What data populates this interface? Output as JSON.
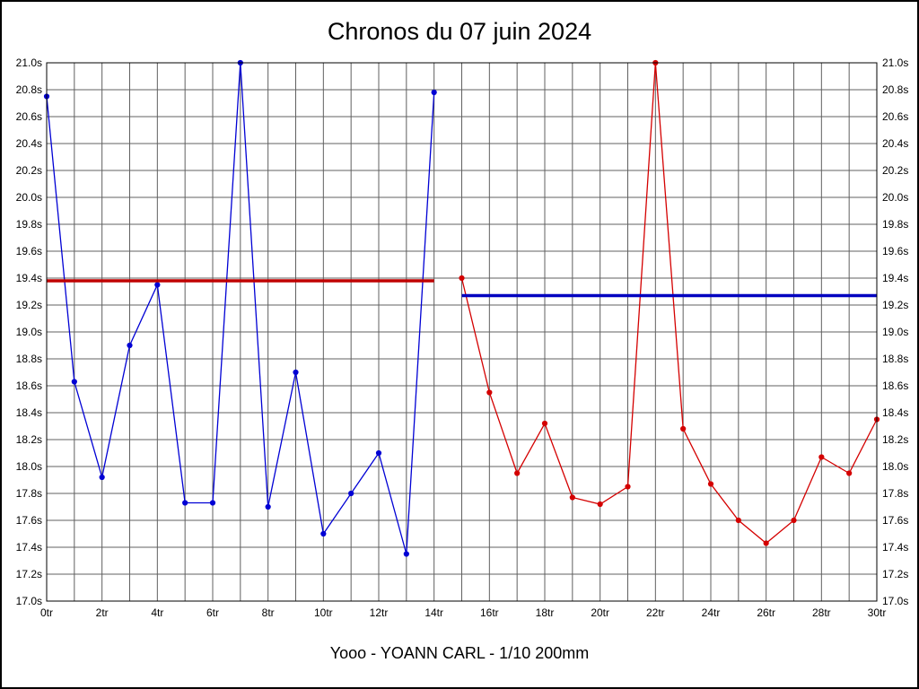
{
  "chart_data": {
    "type": "line",
    "title": "Chronos du 07 juin 2024",
    "footer": "Yooo - YOANN CARL - 1/10 200mm",
    "xlim": [
      0,
      30
    ],
    "ylim": [
      17.0,
      21.0
    ],
    "x_tick_step": 2,
    "y_tick_step": 0.2,
    "x_grid_step": 1,
    "xlabel_suffix": "tr",
    "ylabel_suffix": "s",
    "grid": true,
    "grid_color": "#606060",
    "axis_color": "#000000",
    "text_color": "#000000",
    "legend_position": "none",
    "series": [
      {
        "name": "blue-series",
        "color": "#0000d4",
        "x": [
          0,
          1,
          2,
          3,
          4,
          5,
          6,
          7,
          8,
          9,
          10,
          11,
          12,
          13,
          14
        ],
        "values": [
          20.75,
          18.63,
          17.92,
          18.9,
          19.35,
          17.73,
          17.73,
          21.0,
          17.7,
          18.7,
          17.5,
          17.8,
          18.1,
          17.35,
          20.78
        ]
      },
      {
        "name": "red-series",
        "color": "#d40000",
        "x": [
          15,
          16,
          17,
          18,
          19,
          20,
          21,
          22,
          23,
          24,
          25,
          26,
          27,
          28,
          29,
          30
        ],
        "values": [
          19.4,
          18.55,
          17.95,
          18.32,
          17.77,
          17.72,
          17.85,
          21.0,
          18.28,
          17.87,
          17.6,
          17.43,
          17.6,
          18.07,
          17.95,
          18.35
        ]
      }
    ],
    "ref_lines": [
      {
        "name": "red-reference-line",
        "color": "#c00000",
        "value": 19.38,
        "x_start": 0,
        "x_end": 14
      },
      {
        "name": "blue-reference-line",
        "color": "#0000c0",
        "value": 19.27,
        "x_start": 15,
        "x_end": 30
      }
    ]
  }
}
